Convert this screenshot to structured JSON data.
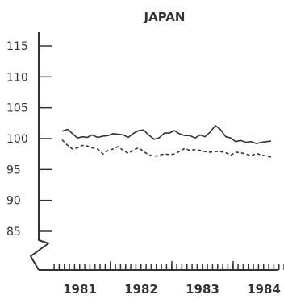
{
  "chart_data": {
    "type": "line",
    "title": "JAPAN",
    "xlabel": "",
    "ylabel": "",
    "ylim": [
      80,
      118
    ],
    "xlim": [
      1980.55,
      1984.4
    ],
    "yticks": [
      85,
      90,
      95,
      100,
      105,
      110,
      115
    ],
    "xtick_labels": [
      "1981",
      "1982",
      "1983",
      "1984"
    ],
    "xtick_values": [
      1981,
      1982,
      1983,
      1984
    ],
    "grid": false,
    "legend": "none",
    "series": [
      {
        "style": "solid",
        "color": "#333333",
        "x": [
          1980.71,
          1980.8,
          1980.88,
          1980.96,
          1981.04,
          1981.12,
          1981.2,
          1981.29,
          1981.38,
          1981.46,
          1981.54,
          1981.62,
          1981.71,
          1981.79,
          1981.88,
          1981.96,
          1982.04,
          1982.12,
          1982.21,
          1982.29,
          1982.38,
          1982.46,
          1982.54,
          1982.62,
          1982.71,
          1982.79,
          1982.88,
          1982.96,
          1983.04,
          1983.12,
          1983.21,
          1983.29,
          1983.38,
          1983.46,
          1983.54,
          1983.62,
          1983.71,
          1983.79,
          1983.88,
          1983.96,
          1984.04,
          1984.12
        ],
        "values": [
          101.2,
          101.5,
          100.8,
          100.1,
          100.3,
          100.2,
          100.6,
          100.2,
          100.4,
          100.5,
          100.8,
          100.7,
          100.6,
          100.2,
          100.9,
          101.3,
          101.4,
          100.6,
          99.9,
          100.1,
          100.9,
          100.9,
          101.3,
          100.8,
          100.5,
          100.5,
          100.1,
          100.6,
          100.3,
          101.0,
          102.1,
          101.5,
          100.3,
          100.1,
          99.5,
          99.7,
          99.4,
          99.5,
          99.2,
          99.4,
          99.5,
          99.6
        ]
      },
      {
        "style": "dashed",
        "color": "#333333",
        "x": [
          1980.71,
          1980.79,
          1980.88,
          1980.96,
          1981.04,
          1981.12,
          1981.2,
          1981.29,
          1981.38,
          1981.46,
          1981.54,
          1981.62,
          1981.71,
          1981.79,
          1981.88,
          1981.96,
          1982.04,
          1982.12,
          1982.21,
          1982.29,
          1982.38,
          1982.46,
          1982.54,
          1982.62,
          1982.71,
          1982.79,
          1982.88,
          1982.96,
          1983.04,
          1983.12,
          1983.21,
          1983.29,
          1983.38,
          1983.46,
          1983.54,
          1983.62,
          1983.71,
          1983.79,
          1983.88,
          1983.96,
          1984.04,
          1984.12
        ],
        "values": [
          99.8,
          99.0,
          98.3,
          98.5,
          98.9,
          98.8,
          98.5,
          98.3,
          97.5,
          98.1,
          98.3,
          98.7,
          98.1,
          97.6,
          98.2,
          98.5,
          97.9,
          97.4,
          97.1,
          97.3,
          97.5,
          97.4,
          97.5,
          97.9,
          98.4,
          98.1,
          98.2,
          98.1,
          97.9,
          97.8,
          97.9,
          97.9,
          97.7,
          97.3,
          97.8,
          97.7,
          97.5,
          97.2,
          97.6,
          97.3,
          97.2,
          97.0
        ]
      }
    ]
  }
}
